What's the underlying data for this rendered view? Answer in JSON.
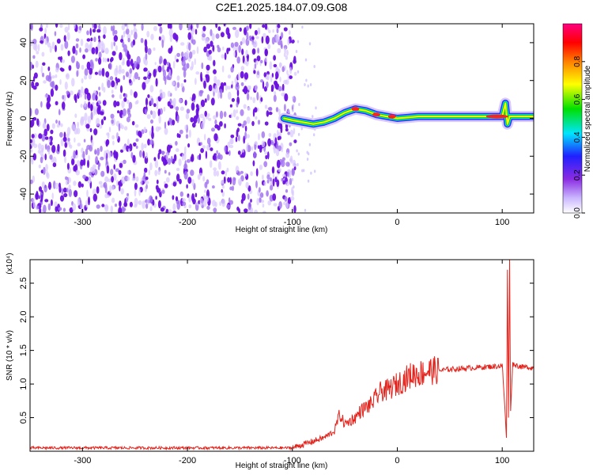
{
  "title": "C2E1.2025.184.07.09.G08",
  "colors": {
    "snr_line": "#e3231c",
    "frame": "#000000",
    "noise": "#7a1fe0"
  },
  "chart_data": [
    {
      "type": "heatmap",
      "xlabel": "Height of straight line (km)",
      "ylabel": "Frequency (Hz)",
      "xlim": [
        -350,
        130
      ],
      "ylim": [
        -50,
        50
      ],
      "x_ticks": [
        -300,
        -200,
        -100,
        0,
        100
      ],
      "y_ticks": [
        -40,
        -20,
        0,
        20,
        40
      ],
      "signal_track": {
        "x": [
          -108,
          -100,
          -90,
          -80,
          -70,
          -60,
          -50,
          -40,
          -30,
          -20,
          -10,
          0,
          20,
          40,
          60,
          80,
          100,
          103,
          105,
          107,
          110,
          130
        ],
        "freq": [
          0,
          -1,
          -2,
          -3,
          -2,
          0,
          3,
          5,
          4,
          2,
          1,
          0,
          1,
          1,
          1,
          1,
          1,
          8,
          -3,
          1,
          1,
          1
        ]
      },
      "colorbar": {
        "label": "Normalized spectral amplitude",
        "range": [
          0,
          1
        ],
        "ticks": [
          "0.0",
          "0.2",
          "0.4",
          "0.6",
          "0.8"
        ],
        "gradient": [
          "#ffffff",
          "#c9b6ff",
          "#8a2be2",
          "#2020ff",
          "#00e5ff",
          "#00e000",
          "#ffff00",
          "#ff8000",
          "#ff0000",
          "#ff0080"
        ]
      }
    },
    {
      "type": "line",
      "xlabel": "Height of straight line (km)",
      "ylabel": "SNR (10 * v/v)",
      "y_multiplier": "(x10⁴)",
      "xlim": [
        -350,
        130
      ],
      "ylim": [
        0,
        2.85
      ],
      "x_ticks": [
        -300,
        -200,
        -100,
        0,
        100
      ],
      "y_ticks": [
        "0.5",
        "1.0",
        "1.5",
        "2.0",
        "2.5"
      ],
      "series": [
        {
          "x": [
            -350,
            -300,
            -200,
            -100,
            -90,
            -80,
            -70,
            -60,
            -55,
            -50,
            -45,
            -40,
            -35,
            -30,
            -25,
            -20,
            -15,
            -10,
            -5,
            0,
            5,
            10,
            15,
            20,
            30,
            40,
            50,
            60,
            70,
            80,
            90,
            100,
            102,
            104,
            105,
            106,
            107,
            108,
            110,
            115,
            120,
            125,
            130
          ],
          "y": [
            0.05,
            0.05,
            0.05,
            0.05,
            0.1,
            0.15,
            0.2,
            0.3,
            0.55,
            0.4,
            0.45,
            0.5,
            0.6,
            0.65,
            0.7,
            0.8,
            0.9,
            0.9,
            0.95,
            1.0,
            1.05,
            1.1,
            1.15,
            1.15,
            1.2,
            1.2,
            1.22,
            1.23,
            1.24,
            1.25,
            1.26,
            1.27,
            0.8,
            0.2,
            2.7,
            0.5,
            2.85,
            0.6,
            1.3,
            1.27,
            1.25,
            1.25,
            1.24
          ]
        }
      ]
    }
  ]
}
